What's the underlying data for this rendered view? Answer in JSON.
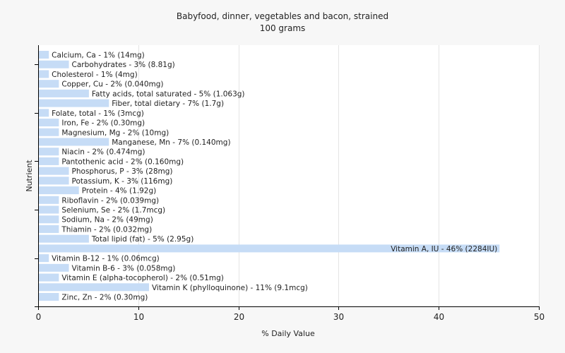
{
  "chart_data": {
    "type": "bar",
    "orientation": "horizontal",
    "title": "Babyfood, dinner, vegetables and bacon, strained",
    "subtitle": "100 grams",
    "xlabel": "% Daily Value",
    "ylabel": "Nutrient",
    "xlim": [
      0,
      50
    ],
    "xticks": [
      0,
      10,
      20,
      30,
      40,
      50
    ],
    "grid": true,
    "bar_color": "#c6dcf6",
    "categories": [
      "Calcium, Ca",
      "Carbohydrates",
      "Cholesterol",
      "Copper, Cu",
      "Fatty acids, total saturated",
      "Fiber, total dietary",
      "Folate, total",
      "Iron, Fe",
      "Magnesium, Mg",
      "Manganese, Mn",
      "Niacin",
      "Pantothenic acid",
      "Phosphorus, P",
      "Potassium, K",
      "Protein",
      "Riboflavin",
      "Selenium, Se",
      "Sodium, Na",
      "Thiamin",
      "Total lipid (fat)",
      "Vitamin A, IU",
      "Vitamin B-12",
      "Vitamin B-6",
      "Vitamin E (alpha-tocopherol)",
      "Vitamin K (phylloquinone)",
      "Zinc, Zn"
    ],
    "values": [
      1,
      3,
      1,
      2,
      5,
      7,
      1,
      2,
      2,
      7,
      2,
      2,
      3,
      3,
      4,
      2,
      2,
      2,
      2,
      5,
      46,
      1,
      3,
      2,
      11,
      2
    ],
    "labels": [
      "Calcium, Ca - 1% (14mg)",
      "Carbohydrates - 3% (8.81g)",
      "Cholesterol - 1% (4mg)",
      "Copper, Cu - 2% (0.040mg)",
      "Fatty acids, total saturated - 5% (1.063g)",
      "Fiber, total dietary - 7% (1.7g)",
      "Folate, total - 1% (3mcg)",
      "Iron, Fe - 2% (0.30mg)",
      "Magnesium, Mg - 2% (10mg)",
      "Manganese, Mn - 7% (0.140mg)",
      "Niacin - 2% (0.474mg)",
      "Pantothenic acid - 2% (0.160mg)",
      "Phosphorus, P - 3% (28mg)",
      "Potassium, K - 3% (116mg)",
      "Protein - 4% (1.92g)",
      "Riboflavin - 2% (0.039mg)",
      "Selenium, Se - 2% (1.7mcg)",
      "Sodium, Na - 2% (49mg)",
      "Thiamin - 2% (0.032mg)",
      "Total lipid (fat) - 5% (2.95g)",
      "Vitamin A, IU - 46% (2284IU)",
      "Vitamin B-12 - 1% (0.06mcg)",
      "Vitamin B-6 - 3% (0.058mg)",
      "Vitamin E (alpha-tocopherol) - 2% (0.51mg)",
      "Vitamin K (phylloquinone) - 11% (9.1mcg)",
      "Zinc, Zn - 2% (0.30mg)"
    ]
  }
}
